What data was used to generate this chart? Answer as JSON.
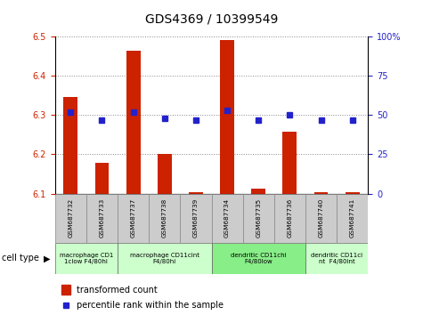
{
  "title": "GDS4369 / 10399549",
  "samples": [
    "GSM687732",
    "GSM687733",
    "GSM687737",
    "GSM687738",
    "GSM687739",
    "GSM687734",
    "GSM687735",
    "GSM687736",
    "GSM687740",
    "GSM687741"
  ],
  "red_values": [
    6.345,
    6.178,
    6.463,
    6.202,
    6.103,
    6.49,
    6.112,
    6.258,
    6.103,
    6.103
  ],
  "blue_values": [
    52,
    47,
    52,
    48,
    47,
    53,
    47,
    50,
    47,
    47
  ],
  "ylim_left": [
    6.1,
    6.5
  ],
  "ylim_right": [
    0,
    100
  ],
  "yticks_left": [
    6.1,
    6.2,
    6.3,
    6.4,
    6.5
  ],
  "yticks_right": [
    0,
    25,
    50,
    75,
    100
  ],
  "cell_type_groups": [
    {
      "label": "macrophage CD1\n1clow F4/80hi",
      "start": 0,
      "end": 2,
      "color": "#ccffcc"
    },
    {
      "label": "macrophage CD11cint\nF4/80hi",
      "start": 2,
      "end": 5,
      "color": "#ccffcc"
    },
    {
      "label": "dendritic CD11chi\nF4/80low",
      "start": 5,
      "end": 8,
      "color": "#88ee88"
    },
    {
      "label": "dendritic CD11ci\nnt  F4/80int",
      "start": 8,
      "end": 10,
      "color": "#ccffcc"
    }
  ],
  "red_color": "#cc2200",
  "blue_color": "#2222cc",
  "legend_red": "transformed count",
  "legend_blue": "percentile rank within the sample",
  "cell_type_label": "cell type",
  "bar_width": 0.45,
  "sample_box_color": "#cccccc",
  "plot_bg": "#ffffff"
}
